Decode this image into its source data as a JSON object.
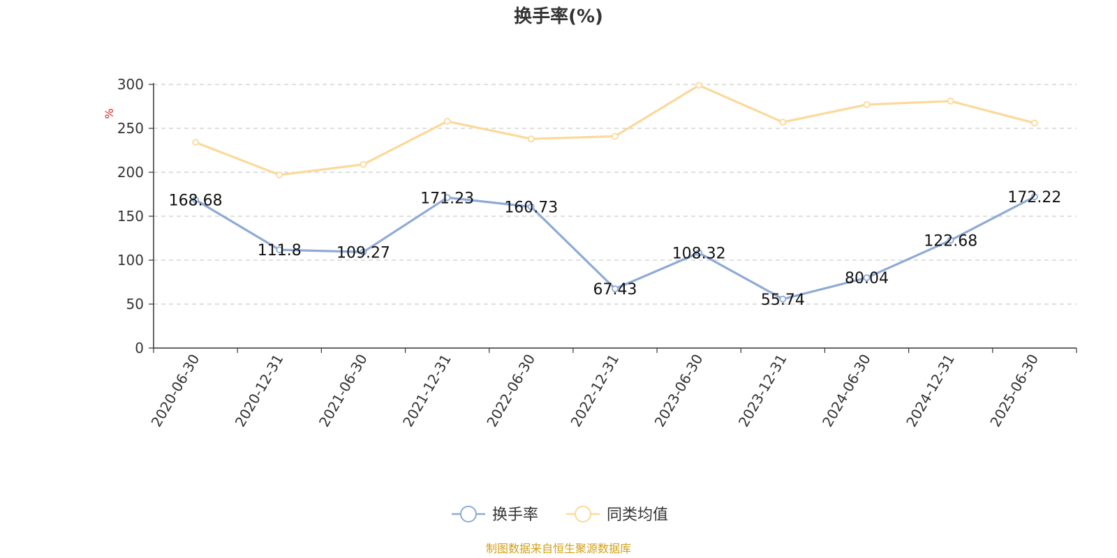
{
  "chart_data": {
    "type": "line",
    "title": "换手率(%)",
    "ylabel": "%",
    "ylim": [
      0,
      300
    ],
    "yticks": [
      0,
      50,
      100,
      150,
      200,
      250,
      300
    ],
    "grid": true,
    "legend_position": "bottom-center",
    "x": [
      "2020-06-30",
      "2020-12-31",
      "2021-06-30",
      "2021-12-31",
      "2022-06-30",
      "2022-12-31",
      "2023-06-30",
      "2023-12-31",
      "2024-06-30",
      "2024-12-31",
      "2025-06-30"
    ],
    "series": [
      {
        "name": "换手率",
        "color": "#8eaad6",
        "values": [
          168.68,
          111.8,
          109.27,
          171.23,
          160.73,
          67.43,
          108.32,
          55.74,
          80.04,
          122.68,
          172.22
        ],
        "labels": [
          "168.68",
          "111.8",
          "109.27",
          "171.23",
          "160.73",
          "67.43",
          "108.32",
          "55.74",
          "80.04",
          "122.68",
          "172.22"
        ]
      },
      {
        "name": "同类均值",
        "color": "#fbd999",
        "values": [
          234,
          197,
          209,
          258,
          238,
          241,
          299,
          257,
          277,
          281,
          256
        ]
      }
    ],
    "source": "制图数据来自恒生聚源数据库"
  },
  "colors": {
    "axis": "#333333",
    "grid": "#cccccc",
    "ylabel": "#e02020",
    "source": "#d4a017"
  }
}
